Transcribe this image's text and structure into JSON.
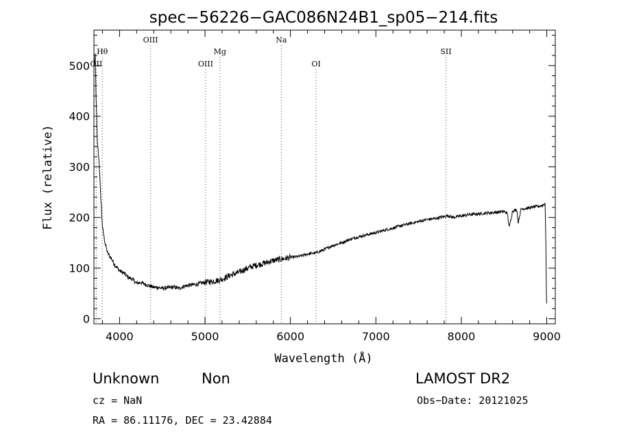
{
  "chart_data": {
    "type": "line",
    "title": "spec−56226−GAC086N24B1_sp05−214.fits",
    "xlabel": "Wavelength (Å)",
    "ylabel": "Flux (relative)",
    "xlim": [
      3700,
      9100
    ],
    "ylim": [
      -10,
      570
    ],
    "x_ticks": [
      4000,
      5000,
      6000,
      7000,
      8000,
      9000
    ],
    "y_ticks": [
      0,
      100,
      200,
      300,
      400,
      500
    ],
    "grid": false,
    "series": [
      {
        "x": [
          3705,
          3715,
          3725,
          3740,
          3760,
          3780,
          3800,
          3830,
          3860,
          3900,
          3950,
          4000,
          4050,
          4100,
          4150,
          4200,
          4250,
          4300,
          4350,
          4400,
          4450,
          4500,
          4550,
          4600,
          4650,
          4700,
          4750,
          4800,
          4850,
          4900,
          4950,
          5000,
          5100,
          5200,
          5300,
          5400,
          5500,
          5600,
          5700,
          5800,
          5900,
          6000,
          6100,
          6200,
          6300,
          6400,
          6500,
          6600,
          6700,
          6800,
          6900,
          7000,
          7100,
          7200,
          7300,
          7400,
          7500,
          7600,
          7700,
          7800,
          7850,
          7900,
          8000,
          8100,
          8200,
          8300,
          8400,
          8500,
          8540,
          8560,
          8600,
          8650,
          8665,
          8700,
          8800,
          8850,
          8900,
          8950,
          8980,
          8990,
          8995,
          8998
        ],
        "y": [
          500,
          520,
          440,
          350,
          310,
          240,
          180,
          150,
          130,
          120,
          105,
          95,
          90,
          82,
          78,
          70,
          72,
          68,
          65,
          62,
          62,
          60,
          61,
          62,
          62,
          60,
          64,
          66,
          67,
          68,
          70,
          72,
          74,
          78,
          86,
          92,
          100,
          106,
          110,
          115,
          118,
          121,
          123,
          128,
          130,
          137,
          145,
          150,
          157,
          162,
          166,
          170,
          175,
          179,
          184,
          188,
          192,
          196,
          198,
          202,
          204,
          200,
          203,
          206,
          207,
          209,
          210,
          212,
          208,
          180,
          213,
          215,
          190,
          217,
          219,
          221,
          222,
          224,
          228,
          150,
          60,
          30
        ]
      }
    ],
    "annotations": [
      {
        "label": "OII",
        "x": 3727,
        "row": 3
      },
      {
        "label": "Hθ",
        "x": 3798,
        "row": 2
      },
      {
        "label": "OIII",
        "x": 4363,
        "row": 1
      },
      {
        "label": "OIII",
        "x": 5007,
        "row": 3
      },
      {
        "label": "Mg",
        "x": 5175,
        "row": 2
      },
      {
        "label": "Na",
        "x": 5893,
        "row": 1
      },
      {
        "label": "OI",
        "x": 6300,
        "row": 3
      },
      {
        "label": "SII",
        "x": 7820,
        "row": 2
      }
    ]
  },
  "info": {
    "object_class": "Unknown",
    "object_subclass": "Non",
    "survey": "LAMOST DR2",
    "cz": "cz = NaN",
    "obs_date": "Obs−Date: 20121025",
    "coords": "RA =  86.11176, DEC =  23.42884"
  }
}
